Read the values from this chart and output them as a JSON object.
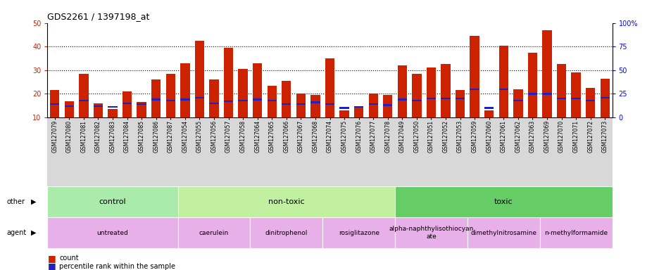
{
  "title": "GDS2261 / 1397198_at",
  "samples": [
    "GSM127079",
    "GSM127080",
    "GSM127081",
    "GSM127082",
    "GSM127083",
    "GSM127084",
    "GSM127085",
    "GSM127086",
    "GSM127087",
    "GSM127054",
    "GSM127055",
    "GSM127056",
    "GSM127057",
    "GSM127058",
    "GSM127064",
    "GSM127065",
    "GSM127066",
    "GSM127067",
    "GSM127068",
    "GSM127074",
    "GSM127075",
    "GSM127076",
    "GSM127077",
    "GSM127078",
    "GSM127049",
    "GSM127050",
    "GSM127051",
    "GSM127052",
    "GSM127053",
    "GSM127059",
    "GSM127060",
    "GSM127061",
    "GSM127062",
    "GSM127063",
    "GSM127069",
    "GSM127070",
    "GSM127071",
    "GSM127072",
    "GSM127073"
  ],
  "counts": [
    21.5,
    17.0,
    28.5,
    16.0,
    13.5,
    21.0,
    16.5,
    26.0,
    28.5,
    33.0,
    42.5,
    26.0,
    39.5,
    30.5,
    33.0,
    23.5,
    25.5,
    20.0,
    19.5,
    35.0,
    13.0,
    14.5,
    20.0,
    19.5,
    32.0,
    28.5,
    31.0,
    32.5,
    21.5,
    44.5,
    13.0,
    40.5,
    22.0,
    37.5,
    47.0,
    32.5,
    29.0,
    22.5,
    26.5
  ],
  "percentiles": [
    14,
    12,
    18,
    12,
    11,
    15,
    14,
    19,
    18,
    19,
    21,
    15,
    17,
    18,
    19,
    18,
    14,
    14,
    16,
    14,
    10,
    11,
    14,
    13,
    19,
    18,
    20,
    20,
    20,
    30,
    10,
    30,
    18,
    25,
    25,
    20,
    20,
    18,
    21
  ],
  "other_groups": [
    {
      "label": "control",
      "start": 0,
      "end": 9,
      "color": "#aaeaaa"
    },
    {
      "label": "non-toxic",
      "start": 9,
      "end": 24,
      "color": "#c0f0a0"
    },
    {
      "label": "toxic",
      "start": 24,
      "end": 39,
      "color": "#66cc66"
    }
  ],
  "agent_groups": [
    {
      "label": "untreated",
      "start": 0,
      "end": 9,
      "color": "#e8b0e8"
    },
    {
      "label": "caerulein",
      "start": 9,
      "end": 14,
      "color": "#e8b0e8"
    },
    {
      "label": "dinitrophenol",
      "start": 14,
      "end": 19,
      "color": "#e8b0e8"
    },
    {
      "label": "rosiglitazone",
      "start": 19,
      "end": 24,
      "color": "#e8b0e8"
    },
    {
      "label": "alpha-naphthylisothiocyan\nate",
      "start": 24,
      "end": 29,
      "color": "#e8b0e8"
    },
    {
      "label": "dimethylnitrosamine",
      "start": 29,
      "end": 34,
      "color": "#e8b0e8"
    },
    {
      "label": "n-methylformamide",
      "start": 34,
      "end": 39,
      "color": "#e8b0e8"
    }
  ],
  "bar_color": "#CC2200",
  "percentile_color": "#2222BB",
  "ylim_left": [
    10,
    50
  ],
  "ylim_right": [
    0,
    100
  ],
  "yticks_left": [
    10,
    20,
    30,
    40,
    50
  ],
  "yticks_right": [
    0,
    25,
    50,
    75,
    100
  ],
  "bar_bottom": 10,
  "bar_width": 0.65,
  "xtick_bg": "#d8d8d8"
}
